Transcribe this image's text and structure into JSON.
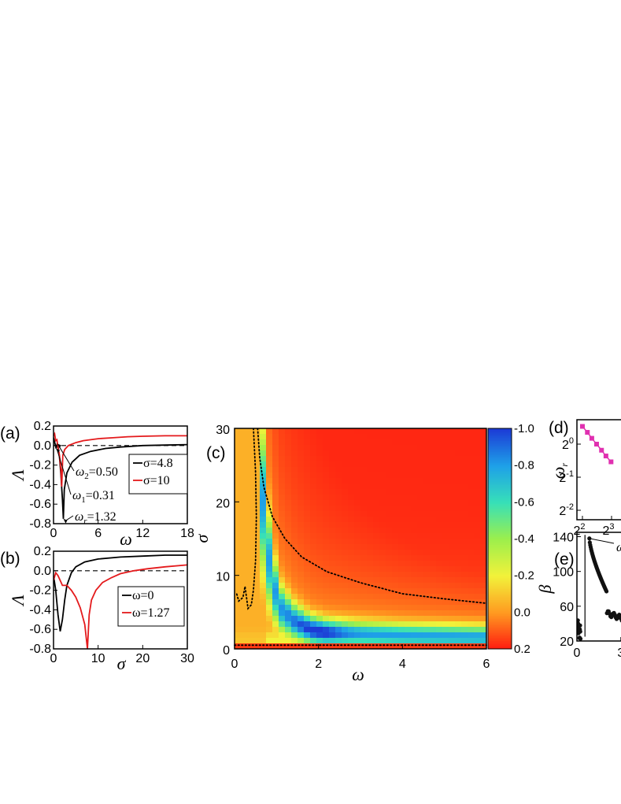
{
  "chart_data": [
    {
      "panel": "(a)",
      "type": "line",
      "xlabel": "ω",
      "ylabel": "Λ",
      "xlim": [
        0,
        18
      ],
      "ylim": [
        -0.8,
        0.2
      ],
      "xticks": [
        "0",
        "6",
        "12",
        "18"
      ],
      "yticks": [
        "0.2",
        "0.0",
        "-0.2",
        "-0.4",
        "-0.6",
        "-0.8"
      ],
      "series": [
        {
          "name": "σ=4.8",
          "color": "#000000",
          "x": [
            0,
            0.2,
            0.35,
            0.5,
            0.62,
            0.8,
            1.0,
            1.2,
            1.32,
            1.45,
            1.8,
            2.5,
            3.5,
            5,
            7,
            9,
            12,
            15,
            18
          ],
          "y": [
            0.08,
            0.02,
            -0.03,
            0.02,
            -0.02,
            -0.12,
            -0.3,
            -0.55,
            -0.75,
            -0.45,
            -0.28,
            -0.17,
            -0.1,
            -0.06,
            -0.03,
            -0.015,
            0.0,
            0.005,
            0.01
          ]
        },
        {
          "name": "σ=10",
          "color": "#e41a1c",
          "x": [
            0,
            0.15,
            0.3,
            0.45,
            0.6,
            0.8,
            1.0,
            1.1,
            1.25,
            1.5,
            2,
            3,
            4,
            6,
            8,
            10,
            12,
            15,
            18
          ],
          "y": [
            0.1,
            0.12,
            0.05,
            0.06,
            -0.02,
            -0.1,
            -0.25,
            -0.42,
            -0.1,
            -0.04,
            0.0,
            0.03,
            0.05,
            0.07,
            0.08,
            0.09,
            0.095,
            0.1,
            0.1
          ]
        }
      ],
      "annotations": [
        {
          "label": "ω₂=0.50",
          "x": 0.5,
          "y": 0.02
        },
        {
          "label": "ω₁=0.31",
          "x": 0.31,
          "y": -0.03
        },
        {
          "label": "ωr=1.32",
          "x": 1.32,
          "y": -0.75
        }
      ],
      "legend": "right"
    },
    {
      "panel": "(b)",
      "type": "line",
      "xlabel": "σ",
      "ylabel": "Λ",
      "xlim": [
        0,
        30
      ],
      "ylim": [
        -0.8,
        0.2
      ],
      "xticks": [
        "0",
        "10",
        "20",
        "30"
      ],
      "yticks": [
        "0.2",
        "0.0",
        "-0.2",
        "-0.4",
        "-0.6",
        "-0.8"
      ],
      "series": [
        {
          "name": "ω=0",
          "color": "#000000",
          "x": [
            0,
            0.5,
            1,
            1.5,
            2,
            2.5,
            3,
            4,
            5,
            7,
            10,
            15,
            20,
            25,
            30
          ],
          "y": [
            -0.05,
            -0.2,
            -0.45,
            -0.62,
            -0.5,
            -0.3,
            -0.15,
            -0.02,
            0.04,
            0.09,
            0.12,
            0.14,
            0.15,
            0.16,
            0.16
          ]
        },
        {
          "name": "ω=1.27",
          "color": "#e41a1c",
          "x": [
            0,
            0.5,
            1,
            2,
            3,
            4,
            5,
            6,
            7,
            7.6,
            8,
            8.5,
            9.5,
            11,
            13,
            15,
            18,
            21,
            25,
            30
          ],
          "y": [
            -0.1,
            -0.02,
            -0.05,
            -0.15,
            -0.15,
            -0.2,
            -0.27,
            -0.38,
            -0.55,
            -0.8,
            -0.45,
            -0.3,
            -0.2,
            -0.12,
            -0.07,
            -0.03,
            0.0,
            0.02,
            0.04,
            0.06
          ]
        }
      ],
      "legend": "right"
    },
    {
      "panel": "(c)",
      "type": "heatmap",
      "xlabel": "ω",
      "ylabel": "σ",
      "xlim": [
        0,
        6
      ],
      "ylim": [
        0,
        30
      ],
      "xticks": [
        "0",
        "2",
        "4",
        "6"
      ],
      "yticks": [
        "0",
        "10",
        "20",
        "30"
      ],
      "colorbar": {
        "ticks": [
          "-1.0",
          "-0.8",
          "-0.6",
          "-0.4",
          "-0.2",
          "0.0",
          "0.2"
        ],
        "range": [
          -1.0,
          0.2
        ],
        "colors": [
          "#1c3bd6",
          "#1ea0e8",
          "#37e0b8",
          "#9cef4c",
          "#f2f23a",
          "#ff9a20",
          "#ff1a10"
        ]
      },
      "contour_zero": [
        {
          "w": [
            0.55,
            0.6,
            0.7,
            0.9,
            1.2,
            1.6,
            2.2,
            3,
            4,
            5,
            6
          ],
          "s": [
            30,
            26,
            22,
            18,
            15,
            12.5,
            10.5,
            9,
            7.5,
            6.8,
            6.2
          ]
        },
        {
          "w": [
            0.45,
            0.5,
            0.52,
            0.5,
            0.45,
            0.4,
            0.32,
            0.25,
            0.2,
            0.1,
            0.05
          ],
          "s": [
            30,
            24,
            18,
            12,
            8,
            6,
            5.5,
            8.5,
            7,
            6.5,
            7.5
          ]
        }
      ],
      "minimum_ridge": {
        "w": [
          0.6,
          0.75,
          0.9,
          1.1,
          1.4,
          1.8,
          2.2,
          3,
          4,
          5,
          6
        ],
        "s": [
          25,
          15,
          9,
          5.5,
          3.8,
          2.6,
          2.2,
          2.0,
          1.8,
          1.7,
          1.6
        ]
      }
    },
    {
      "panel": "(d)",
      "type": "scatter",
      "ylabel": "ωr",
      "xscale": "log2",
      "yscale": "log2",
      "xticks": [
        "2²",
        "2³"
      ],
      "yticks": [
        "2⁰",
        "2⁻¹",
        "2⁻²"
      ],
      "xlim": [
        3.8,
        10
      ],
      "ylim": [
        0.2,
        1.8
      ],
      "x": [
        4,
        4.5,
        5,
        5.6,
        6.3,
        7,
        7.9
      ],
      "y": [
        1.45,
        1.28,
        1.13,
        1.0,
        0.88,
        0.78,
        0.69
      ],
      "color": "#e030b0"
    },
    {
      "panel": "(e)",
      "type": "scatter",
      "ylabel": "β",
      "yticks": [
        "20",
        "60",
        "100",
        "140"
      ],
      "ylim": [
        20,
        145
      ],
      "xticks": [
        "0",
        "3"
      ],
      "xlim": [
        0,
        5
      ],
      "annotations": [
        {
          "label": "ω",
          "x": 0.7,
          "y": 140
        }
      ]
    }
  ]
}
